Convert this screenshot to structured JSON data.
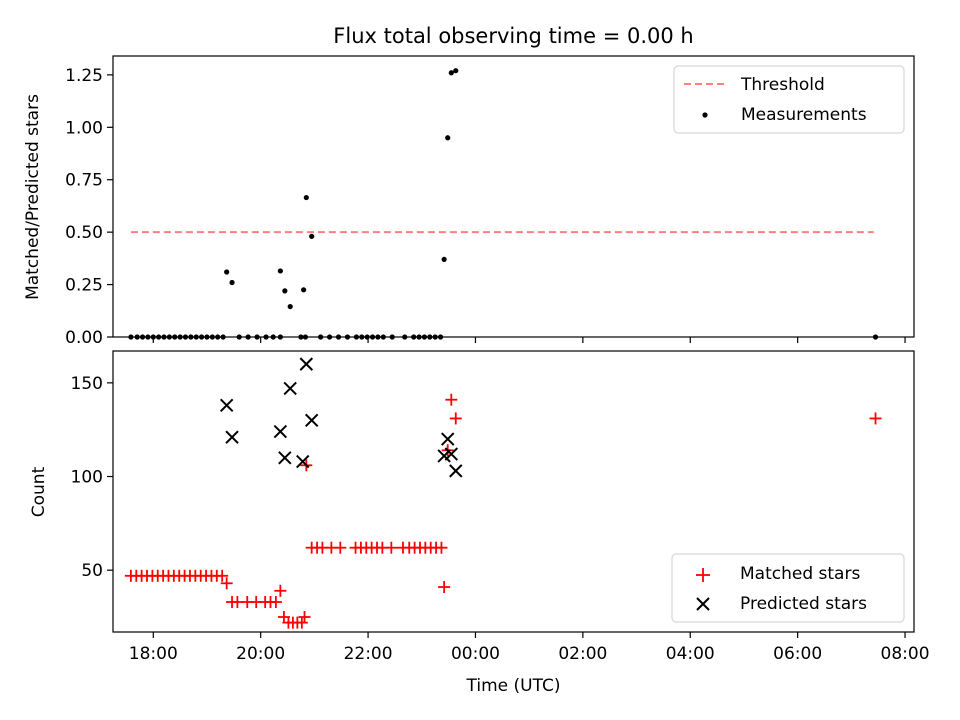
{
  "chart_data": [
    {
      "type": "scatter",
      "title": "Flux total observing time = 0.00 h",
      "xlabel": "",
      "ylabel": "Matched/Predicted stars",
      "xlim": [
        "17:15",
        "08:10"
      ],
      "ylim": [
        0,
        1.34
      ],
      "yticks": [
        0.0,
        0.25,
        0.5,
        0.75,
        1.0,
        1.25
      ],
      "ytick_labels": [
        "0.00",
        "0.25",
        "0.50",
        "0.75",
        "1.00",
        "1.25"
      ],
      "grid": false,
      "legend": {
        "position": "top-right",
        "entries": [
          "Threshold",
          "Measurements"
        ]
      },
      "threshold": {
        "name": "Threshold",
        "y": 0.5,
        "x_start": "17:35",
        "x_end": "07:25",
        "color": "#ff7f7f",
        "style": "dashed"
      },
      "series": [
        {
          "name": "Measurements",
          "color": "#000000",
          "marker": "dot",
          "points": [
            [
              "17:35",
              0.0
            ],
            [
              "17:42",
              0.0
            ],
            [
              "17:48",
              0.0
            ],
            [
              "17:54",
              0.0
            ],
            [
              "18:00",
              0.0
            ],
            [
              "18:06",
              0.0
            ],
            [
              "18:12",
              0.0
            ],
            [
              "18:18",
              0.0
            ],
            [
              "18:24",
              0.0
            ],
            [
              "18:30",
              0.0
            ],
            [
              "18:36",
              0.0
            ],
            [
              "18:42",
              0.0
            ],
            [
              "18:48",
              0.0
            ],
            [
              "18:54",
              0.0
            ],
            [
              "19:00",
              0.0
            ],
            [
              "19:06",
              0.0
            ],
            [
              "19:12",
              0.0
            ],
            [
              "19:18",
              0.0
            ],
            [
              "19:22",
              0.31
            ],
            [
              "19:28",
              0.26
            ],
            [
              "19:36",
              0.0
            ],
            [
              "19:46",
              0.0
            ],
            [
              "19:56",
              0.0
            ],
            [
              "20:06",
              0.0
            ],
            [
              "20:14",
              0.0
            ],
            [
              "20:22",
              0.0
            ],
            [
              "20:22",
              0.315
            ],
            [
              "20:27",
              0.22
            ],
            [
              "20:33",
              0.145
            ],
            [
              "20:45",
              0.0
            ],
            [
              "20:50",
              0.0
            ],
            [
              "20:48",
              0.225
            ],
            [
              "20:51",
              0.665
            ],
            [
              "20:57",
              0.48
            ],
            [
              "21:07",
              0.0
            ],
            [
              "21:17",
              0.0
            ],
            [
              "21:27",
              0.0
            ],
            [
              "21:37",
              0.0
            ],
            [
              "21:47",
              0.0
            ],
            [
              "21:53",
              0.0
            ],
            [
              "21:59",
              0.0
            ],
            [
              "22:05",
              0.0
            ],
            [
              "22:11",
              0.0
            ],
            [
              "22:17",
              0.0
            ],
            [
              "22:27",
              0.0
            ],
            [
              "22:41",
              0.0
            ],
            [
              "22:51",
              0.0
            ],
            [
              "22:57",
              0.0
            ],
            [
              "23:03",
              0.0
            ],
            [
              "23:09",
              0.0
            ],
            [
              "23:15",
              0.0
            ],
            [
              "23:21",
              0.0
            ],
            [
              "23:25",
              0.37
            ],
            [
              "23:29",
              0.95
            ],
            [
              "23:33",
              1.26
            ],
            [
              "23:38",
              1.27
            ],
            [
              "07:27",
              0.0
            ]
          ]
        }
      ]
    },
    {
      "type": "scatter",
      "title": "",
      "xlabel": "Time (UTC)",
      "ylabel": "Count",
      "xlim": [
        "17:15",
        "08:10"
      ],
      "ylim": [
        17,
        167
      ],
      "yticks": [
        50,
        100,
        150
      ],
      "ytick_labels": [
        "50",
        "100",
        "150"
      ],
      "xticks": [
        "18:00",
        "20:00",
        "22:00",
        "00:00",
        "02:00",
        "04:00",
        "06:00",
        "08:00"
      ],
      "grid": false,
      "legend": {
        "position": "bottom-right",
        "entries": [
          "Matched stars",
          "Predicted stars"
        ]
      },
      "series": [
        {
          "name": "Matched stars",
          "color": "#ff0000",
          "marker": "plus",
          "points": [
            [
              "17:35",
              47
            ],
            [
              "17:41",
              47
            ],
            [
              "17:47",
              47
            ],
            [
              "17:53",
              47
            ],
            [
              "17:59",
              47
            ],
            [
              "18:05",
              47
            ],
            [
              "18:11",
              47
            ],
            [
              "18:17",
              47
            ],
            [
              "18:23",
              47
            ],
            [
              "18:29",
              47
            ],
            [
              "18:35",
              47
            ],
            [
              "18:41",
              47
            ],
            [
              "18:47",
              47
            ],
            [
              "18:53",
              47
            ],
            [
              "18:59",
              47
            ],
            [
              "19:05",
              47
            ],
            [
              "19:11",
              47
            ],
            [
              "19:17",
              47
            ],
            [
              "19:22",
              43
            ],
            [
              "19:28",
              33
            ],
            [
              "19:34",
              33
            ],
            [
              "19:45",
              33
            ],
            [
              "19:55",
              33
            ],
            [
              "20:05",
              33
            ],
            [
              "20:11",
              33
            ],
            [
              "20:17",
              33
            ],
            [
              "20:22",
              39
            ],
            [
              "20:26",
              25
            ],
            [
              "20:31",
              22
            ],
            [
              "20:36",
              22
            ],
            [
              "20:41",
              22
            ],
            [
              "20:46",
              22
            ],
            [
              "20:49",
              25
            ],
            [
              "20:51",
              106
            ],
            [
              "20:57",
              62
            ],
            [
              "21:03",
              62
            ],
            [
              "21:09",
              62
            ],
            [
              "21:19",
              62
            ],
            [
              "21:29",
              62
            ],
            [
              "21:46",
              62
            ],
            [
              "21:52",
              62
            ],
            [
              "21:58",
              62
            ],
            [
              "22:04",
              62
            ],
            [
              "22:10",
              62
            ],
            [
              "22:16",
              62
            ],
            [
              "22:26",
              62
            ],
            [
              "22:39",
              62
            ],
            [
              "22:46",
              62
            ],
            [
              "22:52",
              62
            ],
            [
              "22:58",
              62
            ],
            [
              "23:04",
              62
            ],
            [
              "23:10",
              62
            ],
            [
              "23:16",
              62
            ],
            [
              "23:22",
              62
            ],
            [
              "23:25",
              41
            ],
            [
              "23:29",
              114
            ],
            [
              "23:33",
              141
            ],
            [
              "23:38",
              131
            ],
            [
              "07:27",
              131
            ]
          ]
        },
        {
          "name": "Predicted stars",
          "color": "#000000",
          "marker": "x",
          "points": [
            [
              "19:22",
              138
            ],
            [
              "19:28",
              121
            ],
            [
              "20:22",
              124
            ],
            [
              "20:27",
              110
            ],
            [
              "20:33",
              147
            ],
            [
              "20:47",
              108
            ],
            [
              "20:51",
              160
            ],
            [
              "20:57",
              130
            ],
            [
              "23:25",
              111
            ],
            [
              "23:29",
              120
            ],
            [
              "23:33",
              112
            ],
            [
              "23:38",
              103
            ]
          ]
        }
      ]
    }
  ]
}
